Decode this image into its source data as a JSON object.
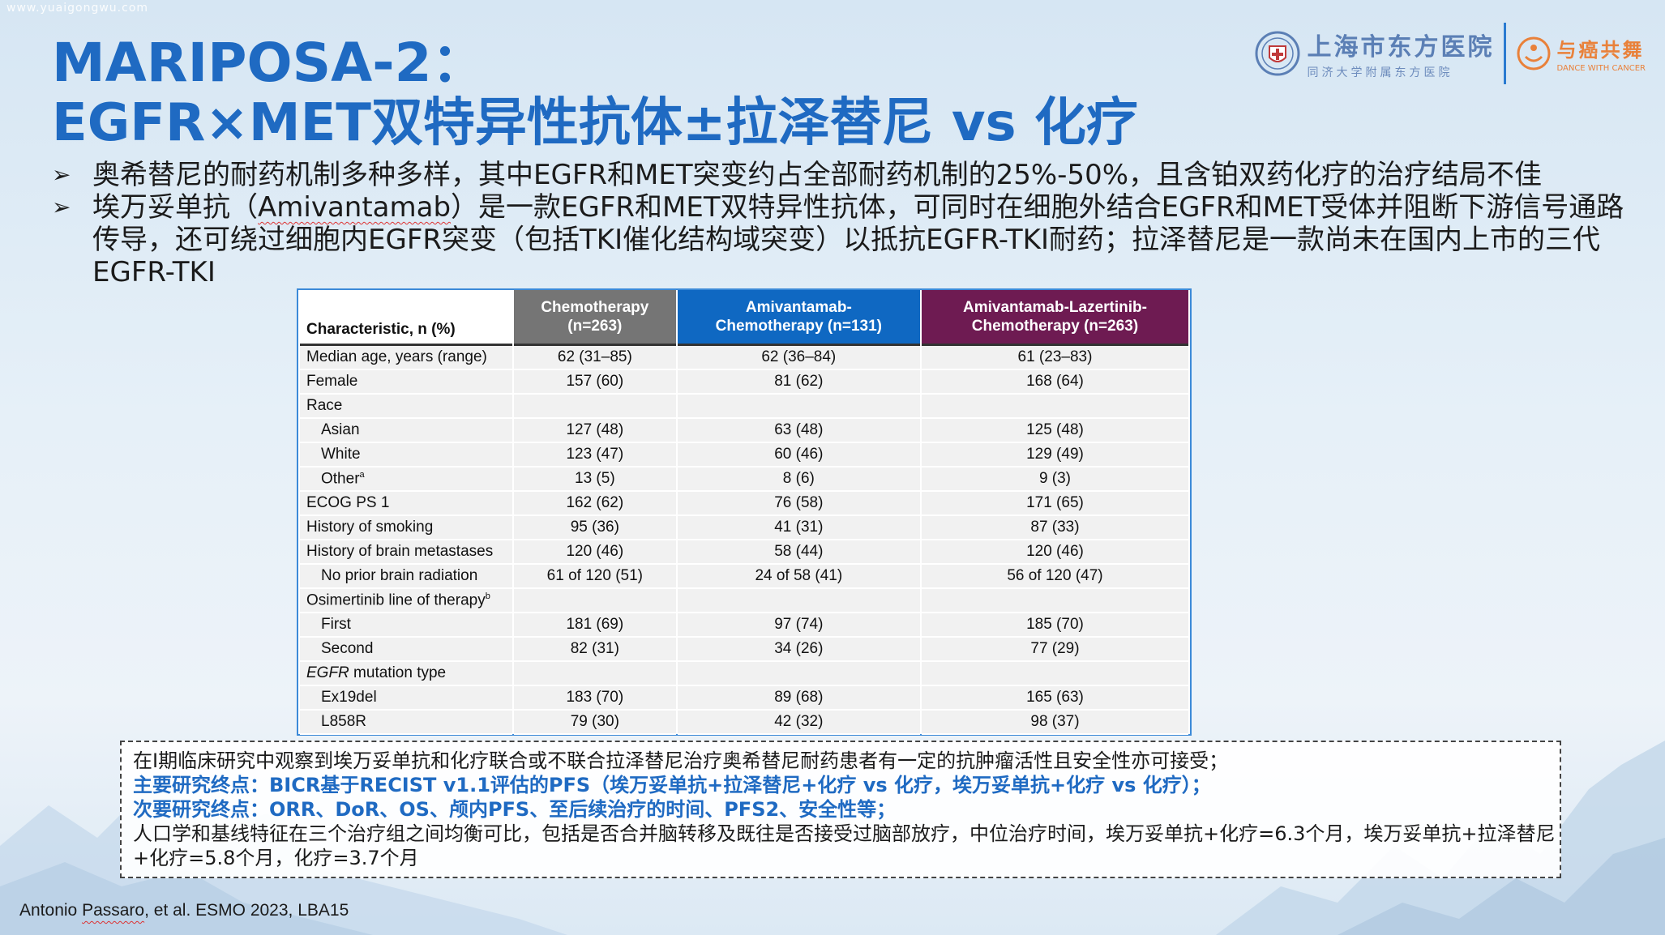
{
  "watermark": "www.yuaigongwu.com",
  "title": {
    "line1": "MARIPOSA-2：",
    "line2": "EGFR×MET双特异性抗体±拉泽替尼 vs 化疗"
  },
  "logos": {
    "hospital_cn": "上海市东方医院",
    "hospital_sub": "同济大学附属东方医院",
    "partner_cn": "与癌共舞",
    "partner_en": "DANCE WITH CANCER"
  },
  "bullets": [
    {
      "arrow": "➢",
      "text": "奥希替尼的耐药机制多种多样，其中EGFR和MET突变约占全部耐药机制的25%-50%，且含铂双药化疗的治疗结局不佳"
    },
    {
      "arrow": "➢",
      "pre": "埃万妥单抗（",
      "underlined": "Amivantamab",
      "post": "）是一款EGFR和MET双特异性抗体，可同时在细胞外结合EGFR和MET受体并阻断下游信号通路传导，还可绕过细胞内EGFR突变（包括TKI催化结构域突变）以抵抗EGFR-TKI耐药；拉泽替尼是一款尚未在国内上市的三代EGFR-TKI"
    }
  ],
  "table": {
    "headers": {
      "characteristic": "Characteristic, n (%)",
      "col1_line1": "Chemotherapy",
      "col1_line2": "(n=263)",
      "col2_line1": "Amivantamab-",
      "col2_line2": "Chemotherapy (n=131)",
      "col3_line1": "Amivantamab-Lazertinib-",
      "col3_line2": "Chemotherapy (n=263)"
    },
    "rows": [
      {
        "label": "Median age, years (range)",
        "sup": "",
        "c1": "62 (31–85)",
        "c2": "62 (36–84)",
        "c3": "61 (23–83)"
      },
      {
        "label": "Female",
        "sup": "",
        "c1": "157 (60)",
        "c2": "81 (62)",
        "c3": "168 (64)"
      },
      {
        "label": "Race",
        "sup": "",
        "c1": "",
        "c2": "",
        "c3": ""
      },
      {
        "label": "Asian",
        "sup": "",
        "c1": "127 (48)",
        "c2": "63 (48)",
        "c3": "125 (48)"
      },
      {
        "label": "White",
        "sup": "",
        "c1": "123 (47)",
        "c2": "60 (46)",
        "c3": "129 (49)"
      },
      {
        "label": "Other",
        "sup": "a",
        "c1": "13 (5)",
        "c2": "8 (6)",
        "c3": "9 (3)"
      },
      {
        "label": "ECOG PS 1",
        "sup": "",
        "c1": "162 (62)",
        "c2": "76 (58)",
        "c3": "171 (65)"
      },
      {
        "label": "History of smoking",
        "sup": "",
        "c1": "95 (36)",
        "c2": "41 (31)",
        "c3": "87 (33)"
      },
      {
        "label": "History of brain metastases",
        "sup": "",
        "c1": "120 (46)",
        "c2": "58 (44)",
        "c3": "120 (46)"
      },
      {
        "label": "No prior brain radiation",
        "sup": "",
        "c1": "61 of 120 (51)",
        "c2": "24 of 58 (41)",
        "c3": "56 of 120 (47)"
      },
      {
        "label": "Osimertinib line of therapy",
        "sup": "b",
        "c1": "",
        "c2": "",
        "c3": ""
      },
      {
        "label": "First",
        "sup": "",
        "c1": "181 (69)",
        "c2": "97 (74)",
        "c3": "185 (70)"
      },
      {
        "label": "Second",
        "sup": "",
        "c1": "82 (31)",
        "c2": "34 (26)",
        "c3": "77 (29)"
      },
      {
        "label": "EGFR",
        "label_rest": " mutation type",
        "sup": "",
        "c1": "",
        "c2": "",
        "c3": ""
      },
      {
        "label": "Ex19del",
        "sup": "",
        "c1": "183 (70)",
        "c2": "89 (68)",
        "c3": "165 (63)"
      },
      {
        "label": "L858R",
        "sup": "",
        "c1": "79 (30)",
        "c2": "42 (32)",
        "c3": "98 (37)"
      }
    ]
  },
  "note": {
    "line1": "在I期临床研究中观察到埃万妥单抗和化疗联合或不联合拉泽替尼治疗奥希替尼耐药患者有一定的抗肿瘤活性且安全性亦可接受；",
    "line2": "主要研究终点：BICR基于RECIST v1.1评估的PFS（埃万妥单抗+拉泽替尼+化疗 vs 化疗，埃万妥单抗+化疗 vs 化疗）；",
    "line3": "次要研究终点：ORR、DoR、OS、颅内PFS、至后续治疗的时间、PFS2、安全性等；",
    "line4": "人口学和基线特征在三个治疗组之间均衡可比，包括是否合并脑转移及既往是否接受过脑部放疗，中位治疗时间，埃万妥单抗+化疗=6.3个月，埃万妥单抗+拉泽替尼+化疗=5.8个月，化疗=3.7个月"
  },
  "citation": {
    "author": "Antonio ",
    "author_underlined": "Passaro",
    "rest": ", et al. ESMO 2023, LBA15"
  },
  "colors": {
    "title": "#1f6ac2",
    "chemo_header": "#757575",
    "ami_chemo_header": "#0f68c2",
    "ami_laz_chemo_header": "#6e1b52"
  }
}
